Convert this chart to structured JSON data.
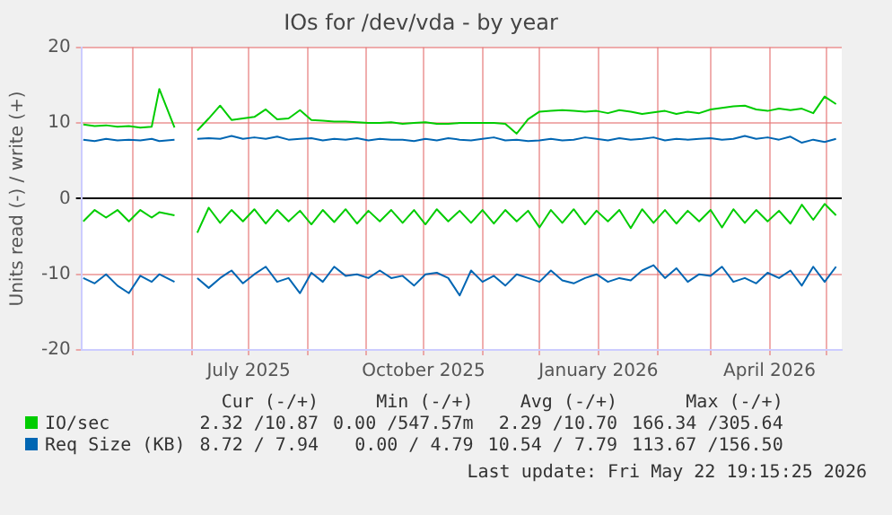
{
  "chart_data": {
    "type": "line",
    "title": "IOs for /dev/vda - by year",
    "ylabel": "Units read (-) / write (+)",
    "x": [
      "2025-04-05",
      "2025-04-11",
      "2025-04-17",
      "2025-04-23",
      "2025-04-29",
      "2025-05-05",
      "2025-05-11",
      "2025-05-15",
      "2025-05-23",
      "2025-05-29",
      "2025-06-04",
      "2025-06-10",
      "2025-06-16",
      "2025-06-22",
      "2025-06-28",
      "2025-07-04",
      "2025-07-10",
      "2025-07-16",
      "2025-07-22",
      "2025-07-28",
      "2025-08-03",
      "2025-08-09",
      "2025-08-15",
      "2025-08-21",
      "2025-08-27",
      "2025-09-02",
      "2025-09-08",
      "2025-09-14",
      "2025-09-20",
      "2025-09-26",
      "2025-10-02",
      "2025-10-08",
      "2025-10-14",
      "2025-10-20",
      "2025-10-26",
      "2025-11-01",
      "2025-11-07",
      "2025-11-13",
      "2025-11-19",
      "2025-11-25",
      "2025-12-01",
      "2025-12-07",
      "2025-12-13",
      "2025-12-19",
      "2025-12-25",
      "2025-12-31",
      "2026-01-06",
      "2026-01-12",
      "2026-01-18",
      "2026-01-24",
      "2026-01-30",
      "2026-02-05",
      "2026-02-11",
      "2026-02-17",
      "2026-02-23",
      "2026-03-01",
      "2026-03-07",
      "2026-03-13",
      "2026-03-19",
      "2026-03-25",
      "2026-03-31",
      "2026-04-06",
      "2026-04-12",
      "2026-04-18",
      "2026-04-24",
      "2026-04-30",
      "2026-05-06"
    ],
    "series": [
      {
        "name": "IO/sec",
        "color": "#00cc00",
        "values": [
          9.8,
          9.6,
          9.7,
          9.5,
          9.6,
          9.4,
          9.5,
          14.5,
          9.4,
          null,
          9.0,
          10.6,
          12.3,
          10.4,
          10.6,
          10.8,
          11.8,
          10.5,
          10.6,
          11.7,
          10.4,
          10.3,
          10.2,
          10.2,
          10.1,
          10.0,
          10.0,
          10.1,
          9.9,
          10.0,
          10.1,
          9.9,
          9.9,
          10.0,
          10.0,
          10.0,
          10.0,
          9.9,
          8.6,
          10.5,
          11.5,
          11.6,
          11.7,
          11.6,
          11.5,
          11.6,
          11.3,
          11.7,
          11.5,
          11.2,
          11.4,
          11.6,
          11.2,
          11.5,
          11.3,
          11.8,
          12.0,
          12.2,
          12.3,
          11.8,
          11.6,
          11.9,
          11.7,
          11.9,
          11.3,
          13.5,
          12.5
        ]
      },
      {
        "color": "#00cc00",
        "values": [
          -3.0,
          -1.5,
          -2.5,
          -1.5,
          -3.0,
          -1.5,
          -2.5,
          -1.8,
          -2.2,
          null,
          -4.5,
          -1.2,
          -3.2,
          -1.5,
          -3.0,
          -1.4,
          -3.3,
          -1.5,
          -3.0,
          -1.6,
          -3.4,
          -1.5,
          -3.1,
          -1.4,
          -3.3,
          -1.6,
          -3.0,
          -1.5,
          -3.2,
          -1.5,
          -3.4,
          -1.4,
          -3.0,
          -1.6,
          -3.2,
          -1.5,
          -3.3,
          -1.5,
          -3.0,
          -1.6,
          -3.8,
          -1.5,
          -3.2,
          -1.4,
          -3.4,
          -1.6,
          -3.0,
          -1.5,
          -3.9,
          -1.4,
          -3.2,
          -1.5,
          -3.3,
          -1.6,
          -3.0,
          -1.5,
          -3.8,
          -1.4,
          -3.2,
          -1.5,
          -3.0,
          -1.6,
          -3.3,
          -0.8,
          -2.8,
          -0.7,
          -2.2
        ]
      },
      {
        "name": "Req Size (KB)",
        "color": "#0066b3",
        "values": [
          7.8,
          7.6,
          7.9,
          7.7,
          7.8,
          7.7,
          7.9,
          7.6,
          7.8,
          null,
          7.9,
          8.0,
          7.9,
          8.3,
          7.9,
          8.1,
          7.9,
          8.2,
          7.8,
          7.9,
          8.0,
          7.7,
          7.9,
          7.8,
          8.0,
          7.7,
          7.9,
          7.8,
          7.8,
          7.6,
          7.9,
          7.7,
          8.0,
          7.8,
          7.7,
          7.9,
          8.1,
          7.7,
          7.8,
          7.6,
          7.7,
          7.9,
          7.7,
          7.8,
          8.1,
          7.9,
          7.7,
          8.0,
          7.8,
          7.9,
          8.1,
          7.7,
          7.9,
          7.8,
          7.9,
          8.0,
          7.8,
          7.9,
          8.3,
          7.9,
          8.1,
          7.8,
          8.2,
          7.4,
          7.8,
          7.5,
          7.9
        ]
      },
      {
        "color": "#0066b3",
        "values": [
          -10.5,
          -11.2,
          -10.0,
          -11.5,
          -12.5,
          -10.2,
          -11.0,
          -10.0,
          -11.0,
          null,
          -10.5,
          -11.8,
          -10.5,
          -9.5,
          -11.2,
          -10.0,
          -9.0,
          -11.0,
          -10.5,
          -12.5,
          -9.8,
          -11.0,
          -9.0,
          -10.2,
          -10.0,
          -10.5,
          -9.5,
          -10.5,
          -10.2,
          -11.5,
          -10.0,
          -9.8,
          -10.5,
          -12.8,
          -9.5,
          -11.0,
          -10.2,
          -11.5,
          -10.0,
          -10.5,
          -11.0,
          -9.5,
          -10.8,
          -11.2,
          -10.5,
          -10.0,
          -11.0,
          -10.5,
          -10.8,
          -9.5,
          -8.8,
          -10.5,
          -9.2,
          -11.0,
          -10.0,
          -10.2,
          -9.0,
          -11.0,
          -10.5,
          -11.2,
          -9.8,
          -10.5,
          -9.5,
          -11.5,
          -9.0,
          -11.0,
          -9.0
        ]
      }
    ],
    "xlim": [
      "2025-04-04",
      "2026-05-09"
    ],
    "xticks": [
      {
        "value": "2025-05-01",
        "label": null
      },
      {
        "value": "2025-06-01",
        "label": null
      },
      {
        "value": "2025-07-01",
        "label": "July 2025"
      },
      {
        "value": "2025-08-01",
        "label": null
      },
      {
        "value": "2025-09-01",
        "label": null
      },
      {
        "value": "2025-10-01",
        "label": "October 2025"
      },
      {
        "value": "2025-11-01",
        "label": null
      },
      {
        "value": "2025-12-01",
        "label": null
      },
      {
        "value": "2026-01-01",
        "label": "January 2026"
      },
      {
        "value": "2026-02-01",
        "label": null
      },
      {
        "value": "2026-03-01",
        "label": null
      },
      {
        "value": "2026-04-01",
        "label": "April 2026"
      },
      {
        "value": "2026-05-01",
        "label": null
      }
    ],
    "ylim": [
      -20,
      20
    ],
    "yticks": [
      -20,
      -10,
      0,
      10,
      20
    ],
    "grid": true,
    "legend": "bottom",
    "marker": "none",
    "line_style": "solid",
    "annotations": [
      "Cur (-/+)",
      "Min (-/+)",
      "Avg (-/+)",
      "Max (-/+)",
      "2.32 /10.87",
      "0.00 /547.57m",
      "2.29 /10.70",
      "166.34 /305.64",
      "8.72 / 7.94",
      "0.00 / 4.79",
      "10.54 / 7.79",
      "113.67 /156.50",
      "Last update: Fri May 22 19:15:25 2026"
    ]
  }
}
